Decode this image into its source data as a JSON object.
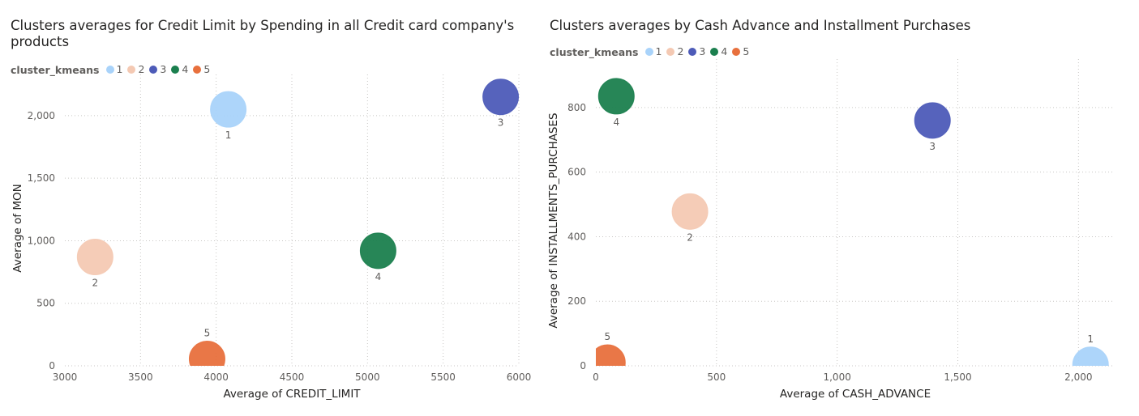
{
  "chart_data": [
    {
      "type": "scatter",
      "title": "Clusters averages for Credit Limit by Spending in all Credit card company's products",
      "xlabel": "Average of CREDIT_LIMIT",
      "ylabel": "Average of MON",
      "legend_title": "cluster_kmeans",
      "legend_position": "top-left",
      "grid": true,
      "xlim": [
        3000,
        6000
      ],
      "ylim": [
        0,
        2200
      ],
      "x_ticks": [
        3000,
        3500,
        4000,
        4500,
        5000,
        5500,
        6000
      ],
      "x_tick_labels": [
        "3000",
        "3500",
        "4000",
        "4500",
        "5000",
        "5500",
        "6000"
      ],
      "y_ticks": [
        0,
        500,
        1000,
        1500,
        2000
      ],
      "y_tick_labels": [
        "0",
        "500",
        "1,000",
        "1,500",
        "2,000"
      ],
      "points": [
        {
          "label": "1",
          "x": 4080,
          "y": 2050,
          "color": "#a9d3fa",
          "label_pos": "below"
        },
        {
          "label": "2",
          "x": 3200,
          "y": 870,
          "color": "#f4c9b3",
          "label_pos": "below"
        },
        {
          "label": "3",
          "x": 5880,
          "y": 2150,
          "color": "#4d5bb8",
          "label_pos": "below"
        },
        {
          "label": "4",
          "x": 5070,
          "y": 920,
          "color": "#1b7f4e",
          "label_pos": "below"
        },
        {
          "label": "5",
          "x": 3940,
          "y": 55,
          "color": "#e8703d",
          "label_pos": "above"
        }
      ]
    },
    {
      "type": "scatter",
      "title": "Clusters averages by Cash Advance and Installment Purchases",
      "xlabel": "Average of CASH_ADVANCE",
      "ylabel": "Average of INSTALLMENTS_PURCHASES",
      "legend_title": "cluster_kmeans",
      "legend_position": "top-left",
      "grid": true,
      "xlim": [
        0,
        2150
      ],
      "ylim": [
        0,
        900
      ],
      "x_ticks": [
        0,
        500,
        1000,
        1500,
        2000
      ],
      "x_tick_labels": [
        "0",
        "500",
        "1,000",
        "1,500",
        "2,000"
      ],
      "y_ticks": [
        0,
        200,
        400,
        600,
        800
      ],
      "y_tick_labels": [
        "0",
        "200",
        "400",
        "600",
        "800"
      ],
      "points": [
        {
          "label": "1",
          "x": 2050,
          "y": 3,
          "color": "#a9d3fa",
          "label_pos": "above"
        },
        {
          "label": "2",
          "x": 390,
          "y": 478,
          "color": "#f4c9b3",
          "label_pos": "below"
        },
        {
          "label": "3",
          "x": 1395,
          "y": 760,
          "color": "#4d5bb8",
          "label_pos": "below"
        },
        {
          "label": "4",
          "x": 85,
          "y": 835,
          "color": "#1b7f4e",
          "label_pos": "below"
        },
        {
          "label": "5",
          "x": 48,
          "y": 10,
          "color": "#e8703d",
          "label_pos": "above"
        }
      ]
    }
  ]
}
